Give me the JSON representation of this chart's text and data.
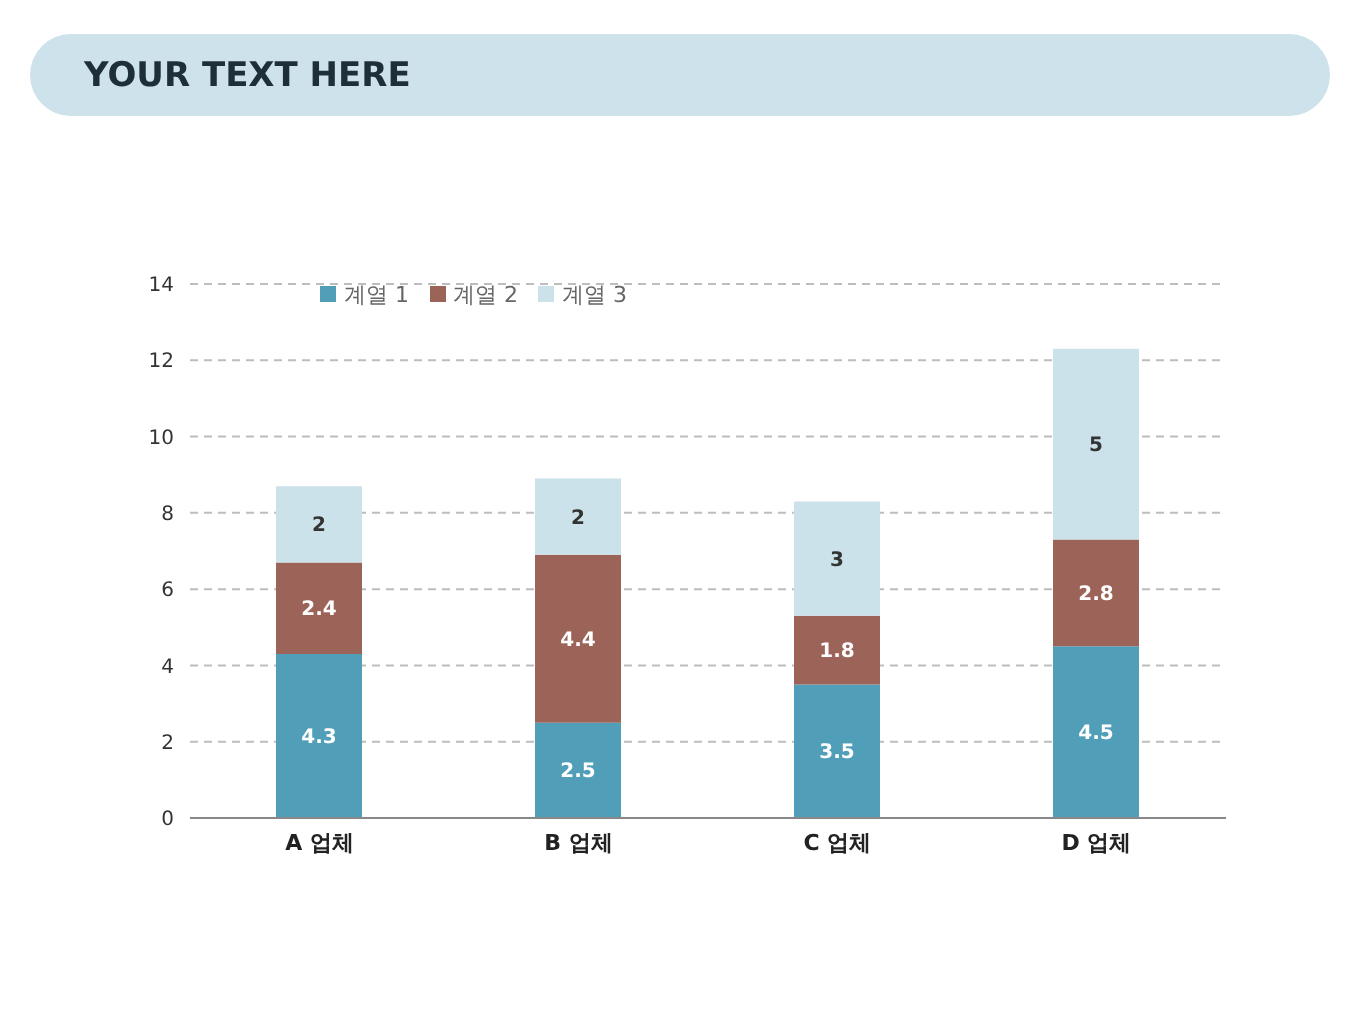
{
  "chart_data": {
    "type": "bar",
    "title": "YOUR TEXT HERE",
    "stacked": true,
    "categories": [
      "A 업체",
      "B 업체",
      "C 업체",
      "D 업체"
    ],
    "series": [
      {
        "name": "계열 1",
        "color": "#519eb9",
        "values": [
          4.3,
          2.5,
          3.5,
          4.5
        ]
      },
      {
        "name": "계열 2",
        "color": "#9c6358",
        "values": [
          2.4,
          4.4,
          1.8,
          2.8
        ]
      },
      {
        "name": "계열 3",
        "color": "#cce2ea",
        "values": [
          2,
          2,
          3,
          5
        ]
      }
    ],
    "ylim": [
      0,
      14
    ],
    "yticks": [
      0,
      2,
      4,
      6,
      8,
      10,
      12,
      14
    ],
    "grid": "y",
    "legend": "top left",
    "data_labels": true
  }
}
